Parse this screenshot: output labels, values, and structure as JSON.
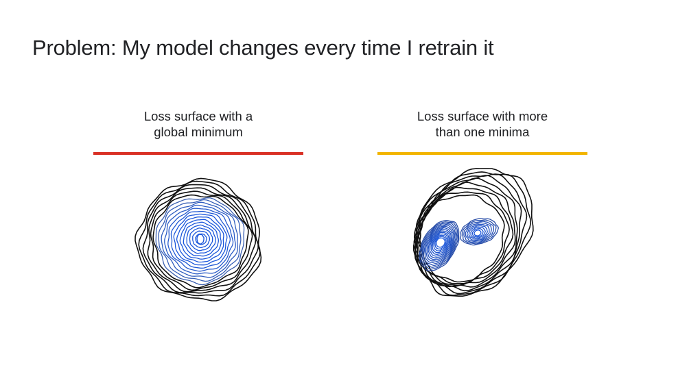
{
  "slide": {
    "title": "Problem: My model changes every time I retrain it"
  },
  "panels": [
    {
      "caption_line1": "Loss surface with a",
      "caption_line2": "global minimum",
      "accent": "#d93025",
      "plot_icon": "contour-single-minimum"
    },
    {
      "caption_line1": "Loss surface with more",
      "caption_line2": "than one minima",
      "accent": "#f2b400",
      "plot_icon": "contour-multiple-minima"
    }
  ],
  "colors": {
    "outer_contour": "#111111",
    "inner_contour": "#1a56db"
  }
}
